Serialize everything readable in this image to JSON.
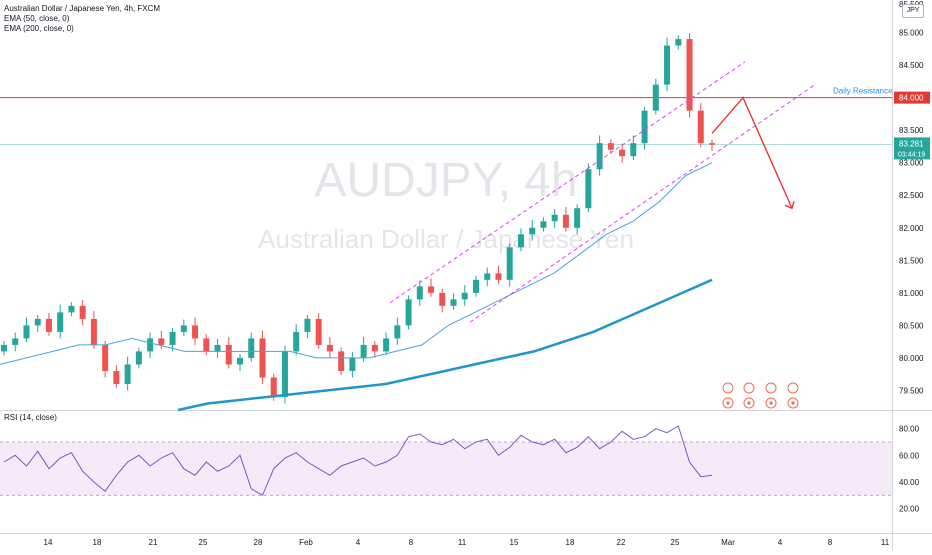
{
  "header": {
    "symbol_line": "Australian Dollar / Japanese Yen, 4h, FXCM",
    "ema50": "EMA (50, close, 0)",
    "ema200": "EMA (200, close, 0)",
    "currency": "JPY"
  },
  "watermark": {
    "title": "AUDJPY, 4h",
    "subtitle": "Australian Dollar / Japanese Yen"
  },
  "price_axis": {
    "ticks": [
      "85.000",
      "84.500",
      "84.000",
      "83.500",
      "83.000",
      "82.500",
      "82.000",
      "81.500",
      "81.000",
      "80.500",
      "80.000",
      "79.500"
    ],
    "top_partial": "85.500"
  },
  "annotations": {
    "resistance_label": "Daily Resistance",
    "resistance_value": "84.000",
    "last_price": "83.281",
    "countdown": "03:44:19"
  },
  "rsi": {
    "label": "RSI (14, close)",
    "ticks": [
      "80.00",
      "60.00",
      "40.00",
      "20.00"
    ]
  },
  "time_axis": {
    "labels": [
      "14",
      "18",
      "21",
      "25",
      "28",
      "Feb",
      "4",
      "8",
      "11",
      "15",
      "18",
      "22",
      "25",
      "Mar",
      "4",
      "8",
      "11"
    ]
  },
  "colors": {
    "up": "#26a69a",
    "down": "#ef5350",
    "ema50": "#4aa3df",
    "ema200": "#2196c9",
    "resistance": "#e53935",
    "channel": "#e040fb",
    "rsi": "#7e57c2",
    "arrow": "#e53935"
  },
  "chart_data": {
    "type": "line",
    "x_type": "time",
    "price_range": [
      79.2,
      85.5
    ],
    "resistance": 84.0,
    "last": 83.281,
    "close_series": [
      80.2,
      80.3,
      80.5,
      80.6,
      80.4,
      80.7,
      80.8,
      80.6,
      80.2,
      79.8,
      79.6,
      79.9,
      80.1,
      80.3,
      80.2,
      80.4,
      80.5,
      80.3,
      80.1,
      80.2,
      79.9,
      80.0,
      80.3,
      79.7,
      79.4,
      80.1,
      80.4,
      80.6,
      80.2,
      80.1,
      79.8,
      80.0,
      80.2,
      80.1,
      80.3,
      80.5,
      80.9,
      81.1,
      81.0,
      80.8,
      80.9,
      81.0,
      81.2,
      81.3,
      81.2,
      81.7,
      81.9,
      82.0,
      82.1,
      82.2,
      82.0,
      82.3,
      82.9,
      83.3,
      83.2,
      83.1,
      83.3,
      83.8,
      84.2,
      84.8,
      84.9,
      83.8,
      83.3,
      83.28
    ],
    "ema50_series": [
      79.9,
      80.0,
      80.1,
      80.2,
      80.2,
      80.3,
      80.2,
      80.1,
      80.1,
      80.1,
      80.1,
      80.1,
      80.0,
      80.0,
      80.0,
      80.1,
      80.2,
      80.5,
      80.7,
      80.9,
      81.1,
      81.3,
      81.6,
      81.9,
      82.1,
      82.4,
      82.8,
      83.0
    ],
    "ema200_series": [
      79.2,
      79.3,
      79.35,
      79.4,
      79.45,
      79.5,
      79.55,
      79.6,
      79.7,
      79.8,
      79.9,
      80.0,
      80.1,
      80.25,
      80.4,
      80.6,
      80.8,
      81.0,
      81.2
    ],
    "rsi_series": [
      55,
      60,
      52,
      63,
      50,
      58,
      62,
      48,
      40,
      33,
      45,
      55,
      60,
      52,
      58,
      62,
      50,
      45,
      55,
      48,
      52,
      60,
      35,
      30,
      50,
      58,
      62,
      55,
      50,
      45,
      52,
      55,
      58,
      52,
      55,
      60,
      74,
      76,
      70,
      68,
      72,
      65,
      70,
      72,
      60,
      66,
      75,
      70,
      68,
      72,
      62,
      66,
      74,
      65,
      70,
      78,
      72,
      74,
      80,
      77,
      82,
      55,
      44,
      45
    ],
    "rsi_band": [
      30,
      70
    ],
    "forecast_path": [
      84.0,
      82.3
    ]
  }
}
